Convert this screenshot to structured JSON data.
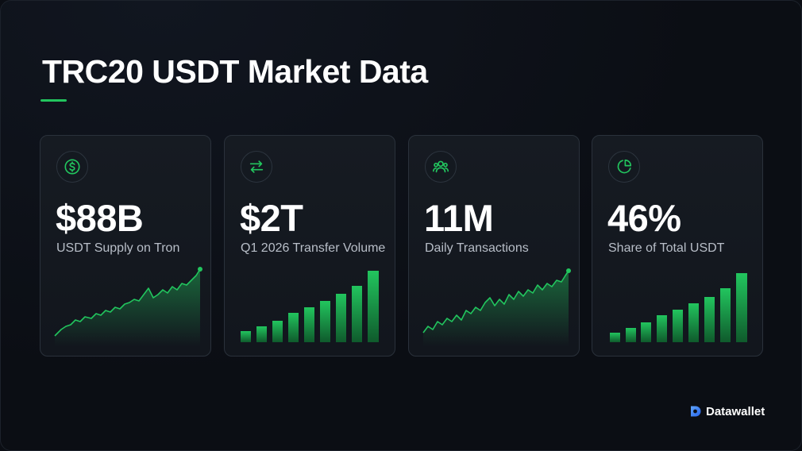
{
  "page": {
    "title": "TRC20 USDT Market Data",
    "accent_color": "#22c55e"
  },
  "cards": [
    {
      "icon": "dollar-circle-icon",
      "value": "$88B",
      "label": "USDT Supply on Tron",
      "chart_type": "area-line"
    },
    {
      "icon": "arrows-swap-icon",
      "value": "$2T",
      "label": "Q1 2026 Transfer Volume",
      "chart_type": "bars"
    },
    {
      "icon": "users-icon",
      "value": "11M",
      "label": "Daily Transactions",
      "chart_type": "area-line"
    },
    {
      "icon": "pie-chart-icon",
      "value": "46%",
      "label": "Share of Total USDT",
      "chart_type": "bars"
    }
  ],
  "brand": {
    "name": "Datawallet",
    "logo_icon": "datawallet-logo-icon"
  }
}
